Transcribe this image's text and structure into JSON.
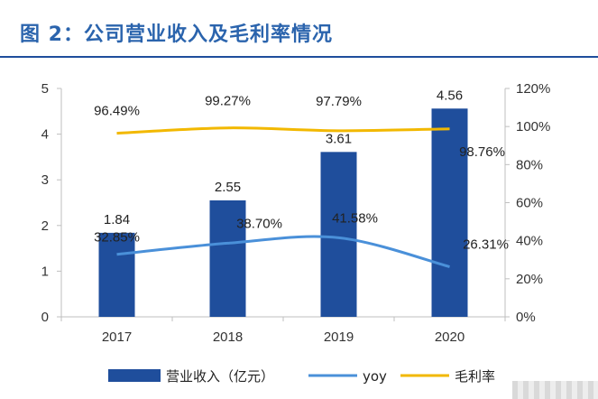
{
  "header": {
    "title": "图 2：公司营业收入及毛利率情况"
  },
  "legend": {
    "revenue_label": "营业收入（亿元）",
    "yoy_label": "yoy",
    "margin_label": "毛利率"
  },
  "colors": {
    "title": "#2b64ad",
    "bar": "#1f4e9c",
    "yoy_line": "#4a90d9",
    "margin_line": "#f2b800",
    "axis": "#bfbfbf"
  },
  "chart_data": {
    "type": "bar",
    "title": "",
    "categories": [
      "2017",
      "2018",
      "2019",
      "2020"
    ],
    "left_axis": {
      "ylim": [
        0,
        5
      ],
      "ticks": [
        "0",
        "1",
        "2",
        "3",
        "4",
        "5"
      ]
    },
    "right_axis": {
      "ylim": [
        0,
        120
      ],
      "ticks": [
        "0%",
        "20%",
        "40%",
        "60%",
        "80%",
        "100%",
        "120%"
      ]
    },
    "series": [
      {
        "name": "营业收入（亿元）",
        "type": "bar",
        "axis": "left",
        "values": [
          1.84,
          2.55,
          3.61,
          4.56
        ],
        "labels": [
          "1.84",
          "2.55",
          "3.61",
          "4.56"
        ]
      },
      {
        "name": "yoy",
        "type": "line",
        "axis": "right",
        "values": [
          32.85,
          38.7,
          41.58,
          26.31
        ],
        "labels": [
          "32.85%",
          "38.70%",
          "41.58%",
          "26.31%"
        ]
      },
      {
        "name": "毛利率",
        "type": "line",
        "axis": "right",
        "values": [
          96.49,
          99.27,
          97.79,
          98.76
        ],
        "labels": [
          "96.49%",
          "99.27%",
          "97.79%",
          "98.76%"
        ]
      }
    ]
  }
}
